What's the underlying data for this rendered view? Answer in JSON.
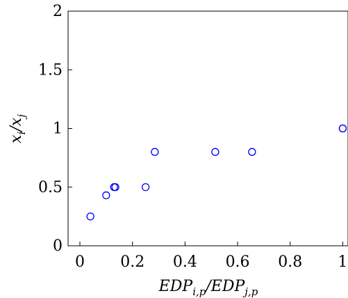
{
  "chart_data": {
    "type": "scatter",
    "title": "",
    "xlabel": "EDP_{i,p} / EDP_{j,p}",
    "ylabel": "x_i / x_j",
    "xlim": [
      -0.045,
      1.02
    ],
    "ylim": [
      0,
      2
    ],
    "x_ticks": [
      "0",
      "0.2",
      "0.4",
      "0.6",
      "0.8",
      "1"
    ],
    "y_ticks": [
      "0",
      "0.5",
      "1",
      "1.5",
      "2"
    ],
    "grid": false,
    "marker": "open-circle",
    "color": "#0000ff",
    "series": [
      {
        "points": [
          {
            "x": 0.04,
            "y": 0.25
          },
          {
            "x": 0.1,
            "y": 0.43
          },
          {
            "x": 0.13,
            "y": 0.5
          },
          {
            "x": 0.135,
            "y": 0.5
          },
          {
            "x": 0.25,
            "y": 0.5
          },
          {
            "x": 0.285,
            "y": 0.8
          },
          {
            "x": 0.515,
            "y": 0.8
          },
          {
            "x": 0.655,
            "y": 0.8
          },
          {
            "x": 1.0,
            "y": 1.0
          },
          {
            "x": 1.0,
            "y": 1.0
          }
        ]
      }
    ]
  }
}
